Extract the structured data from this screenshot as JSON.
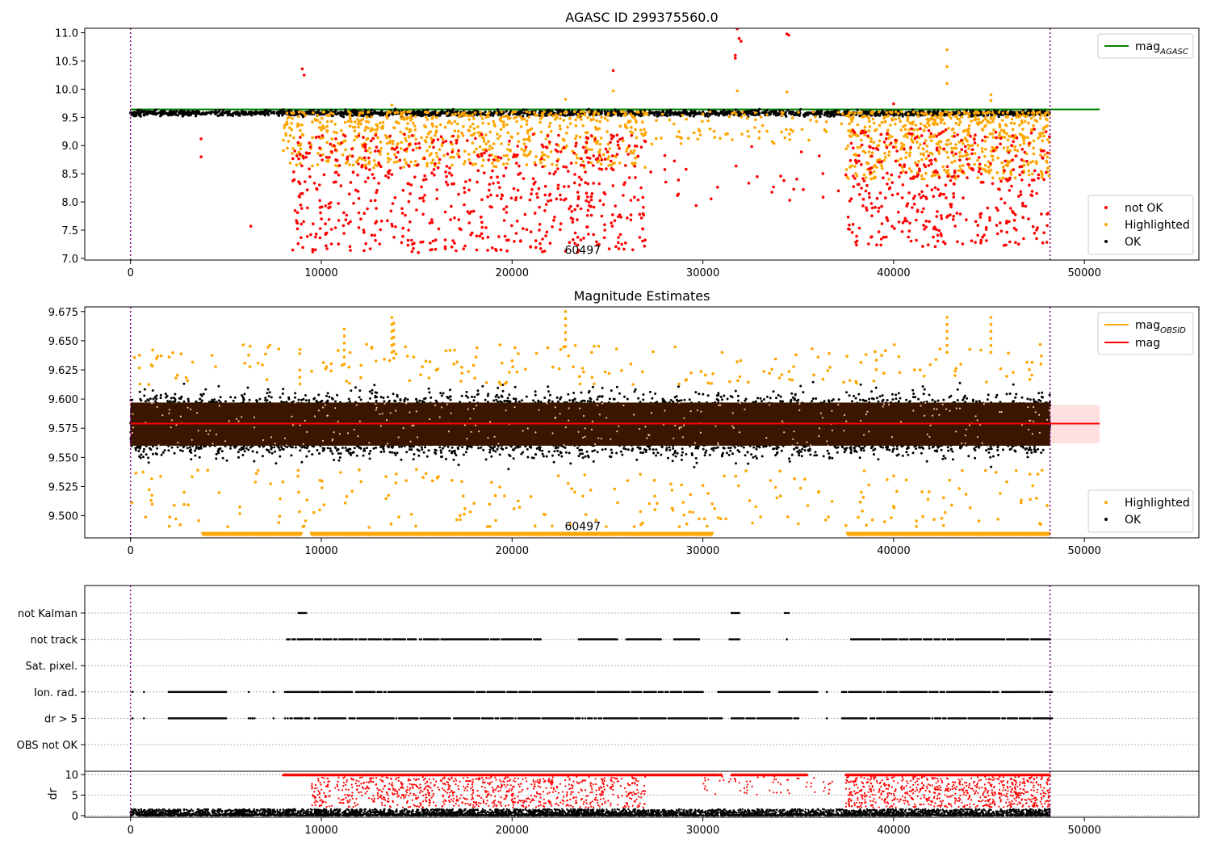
{
  "figure": {
    "background": "#ffffff"
  },
  "colors": {
    "ok": "#000000",
    "highlighted": "#ffa500",
    "not_ok": "#ff0000",
    "agasc_line": "#008000",
    "obsid_line": "#ffa500",
    "mag_line": "#ff0000",
    "band": "#ffcccc",
    "vline": "#800080",
    "grid": "#b0b0b0"
  },
  "chart_data": [
    {
      "id": "panel1",
      "type": "scatter",
      "title": "AGASC ID 299375560.0",
      "xlabel": "",
      "ylabel": "",
      "xlim": [
        -2400,
        56000
      ],
      "ylim": [
        6.97,
        11.08
      ],
      "xticks": [
        0,
        10000,
        20000,
        30000,
        40000,
        50000
      ],
      "xtick_labels": [
        "0",
        "10000",
        "20000",
        "30000",
        "40000",
        "50000"
      ],
      "yticks": [
        7.0,
        7.5,
        8.0,
        8.5,
        9.0,
        9.5,
        10.0,
        10.5,
        11.0
      ],
      "ytick_labels": [
        "7.0",
        "7.5",
        "8.0",
        "8.5",
        "9.0",
        "9.5",
        "10.0",
        "10.5",
        "11.0"
      ],
      "annotation": {
        "text": "60497",
        "x": 23700,
        "y": 7.15
      },
      "vlines": [
        0,
        48200
      ],
      "hlines": [
        {
          "name": "mag_AGASC",
          "y": 9.64,
          "x0": 0,
          "x1": 50800,
          "color": "#008000"
        }
      ],
      "line_legend": {
        "position": "upper right",
        "entries": [
          {
            "label": "mag",
            "sub": "AGASC",
            "color": "#008000"
          }
        ]
      },
      "scatter_legend": {
        "position": "lower right",
        "entries": [
          {
            "label": "not OK",
            "color": "#ff0000"
          },
          {
            "label": "Highlighted",
            "color": "#ffa500"
          },
          {
            "label": "OK",
            "color": "#000000"
          }
        ]
      },
      "series": [
        {
          "name": "OK",
          "color": "#000000",
          "x_range": [
            0,
            48200
          ],
          "y_center": 9.575,
          "y_spread": 0.025,
          "approx_count": 2000
        },
        {
          "name": "Highlighted",
          "color": "#ffa500",
          "clusters": [
            [
              8000,
              27000,
              8.6,
              9.6,
              700
            ],
            [
              27000,
              37500,
              9.0,
              9.6,
              80
            ],
            [
              37500,
              48200,
              8.4,
              9.6,
              600
            ]
          ],
          "spikes": [
            [
              13700,
              9.72
            ],
            [
              42800,
              10.7
            ],
            [
              42800,
              10.4
            ],
            [
              42800,
              10.1
            ],
            [
              45100,
              9.9
            ],
            [
              45100,
              9.8
            ],
            [
              31800,
              9.97
            ],
            [
              34400,
              9.95
            ],
            [
              25300,
              9.97
            ],
            [
              22800,
              9.82
            ]
          ]
        },
        {
          "name": "not OK",
          "color": "#ff0000",
          "clusters": [
            [
              8500,
              27000,
              7.1,
              9.2,
              650
            ],
            [
              27000,
              37500,
              7.9,
              9.0,
              30
            ],
            [
              37500,
              48200,
              7.2,
              9.3,
              400
            ]
          ],
          "points": [
            [
              9000,
              10.36
            ],
            [
              9100,
              10.25
            ],
            [
              25300,
              10.33
            ],
            [
              31700,
              10.6
            ],
            [
              31700,
              10.55
            ],
            [
              31800,
              11.07
            ],
            [
              31900,
              10.9
            ],
            [
              32000,
              10.85
            ],
            [
              34400,
              10.98
            ],
            [
              34500,
              10.96
            ],
            [
              40000,
              9.74
            ],
            [
              6300,
              7.57
            ],
            [
              3700,
              8.8
            ],
            [
              3700,
              9.12
            ]
          ]
        }
      ]
    },
    {
      "id": "panel2",
      "type": "scatter",
      "title": "Magnitude Estimates",
      "xlabel": "",
      "ylabel": "",
      "xlim": [
        -2400,
        56000
      ],
      "ylim": [
        9.481,
        9.679
      ],
      "xticks": [
        0,
        10000,
        20000,
        30000,
        40000,
        50000
      ],
      "xtick_labels": [
        "0",
        "10000",
        "20000",
        "30000",
        "40000",
        "50000"
      ],
      "yticks": [
        9.5,
        9.525,
        9.55,
        9.575,
        9.6,
        9.625,
        9.65,
        9.675
      ],
      "ytick_labels": [
        "9.500",
        "9.525",
        "9.550",
        "9.575",
        "9.600",
        "9.625",
        "9.650",
        "9.675"
      ],
      "annotation": {
        "text": "60497",
        "x": 23700,
        "y": 9.491
      },
      "vlines": [
        0,
        48200
      ],
      "band": {
        "y0": 9.562,
        "y1": 9.595,
        "x0": 0,
        "x1": 50800
      },
      "hlines": [
        {
          "name": "mag",
          "y": 9.579,
          "x0": 0,
          "x1": 50800,
          "color": "#ff0000"
        }
      ],
      "line_legend": {
        "position": "upper right",
        "entries": [
          {
            "label": "mag",
            "sub": "OBSID",
            "color": "#ffa500"
          },
          {
            "label": "mag",
            "sub": "",
            "color": "#ff0000"
          }
        ]
      },
      "scatter_legend": {
        "position": "lower right",
        "entries": [
          {
            "label": "Highlighted",
            "color": "#ffa500"
          },
          {
            "label": "OK",
            "color": "#000000"
          }
        ]
      },
      "series": [
        {
          "name": "OK",
          "color": "#000000",
          "x_range": [
            0,
            48200
          ],
          "y_center": 9.578,
          "y_spread": 0.012,
          "approx_count": 9000
        },
        {
          "name": "mag_OBSID",
          "color": "#3a1500",
          "x_range": [
            0,
            48200
          ],
          "y_min": 9.56,
          "y_max": 9.597
        },
        {
          "name": "Highlighted",
          "color": "#ffa500",
          "x_range": [
            0,
            48200
          ],
          "y_min": 9.482,
          "y_max": 9.672,
          "floor_runs": [
            [
              3800,
              9000
            ],
            [
              9500,
              30500
            ],
            [
              37600,
              48200
            ]
          ],
          "floor_y": 9.484,
          "spikes": [
            [
              11200,
              9.66
            ],
            [
              13700,
              9.67
            ],
            [
              13800,
              9.665
            ],
            [
              22800,
              9.675
            ],
            [
              42800,
              9.67
            ],
            [
              45100,
              9.67
            ]
          ]
        }
      ]
    },
    {
      "id": "panel3",
      "type": "scatter",
      "title": "",
      "xlabel": "",
      "ylabel": "",
      "xlim": [
        -2400,
        56000
      ],
      "categories": [
        "not Kalman",
        "not track",
        "Sat. pixel.",
        "Ion. rad.",
        "dr > 5",
        "OBS not OK"
      ],
      "flag_runs": {
        "not Kalman": [
          [
            8800,
            9200
          ],
          [
            31500,
            31900
          ],
          [
            34300,
            34500
          ]
        ],
        "not track": [
          [
            8200,
            21500
          ],
          [
            23500,
            25500
          ],
          [
            26000,
            27800
          ],
          [
            28500,
            29800
          ],
          [
            31400,
            31900
          ],
          [
            34400,
            34400
          ],
          [
            37700,
            48200
          ]
        ],
        "Sat. pixel.": [],
        "Ion. rad.": [
          [
            100,
            100
          ],
          [
            700,
            700
          ],
          [
            2000,
            5000
          ],
          [
            6200,
            6200
          ],
          [
            7500,
            7600
          ],
          [
            8100,
            30000
          ],
          [
            30800,
            33500
          ],
          [
            34000,
            36000
          ],
          [
            36500,
            36500
          ],
          [
            37300,
            48300
          ]
        ],
        "dr > 5": [
          [
            100,
            100
          ],
          [
            700,
            700
          ],
          [
            2000,
            5000
          ],
          [
            6200,
            6500
          ],
          [
            7500,
            7600
          ],
          [
            8100,
            31000
          ],
          [
            31500,
            35000
          ],
          [
            36500,
            36500
          ],
          [
            37300,
            48300
          ]
        ],
        "OBS not OK": []
      }
    },
    {
      "id": "panel4",
      "type": "scatter",
      "title": "",
      "xlabel": "",
      "ylabel": "dr",
      "xlim": [
        -2400,
        56000
      ],
      "ylim": [
        -0.4,
        10.8
      ],
      "xticks": [
        0,
        10000,
        20000,
        30000,
        40000,
        50000
      ],
      "xtick_labels": [
        "0",
        "10000",
        "20000",
        "30000",
        "40000",
        "50000"
      ],
      "yticks": [
        0,
        5,
        10
      ],
      "ytick_labels": [
        "0",
        "5",
        "10"
      ],
      "series": [
        {
          "name": "OK",
          "color": "#000000",
          "x_range": [
            0,
            48200
          ],
          "y_min": 0,
          "y_max": 1.6,
          "approx_count": 5000
        },
        {
          "name": "not OK",
          "color": "#ff0000",
          "cap_y": 10,
          "cap_runs": [
            [
              8000,
              31000
            ],
            [
              31500,
              35500
            ],
            [
              37500,
              48200
            ]
          ],
          "clusters": [
            [
              9500,
              27000,
              2,
              9.5,
              900
            ],
            [
              37500,
              48200,
              2,
              9.5,
              700
            ],
            [
              30000,
              37000,
              5,
              9.5,
              60
            ]
          ]
        }
      ]
    }
  ]
}
